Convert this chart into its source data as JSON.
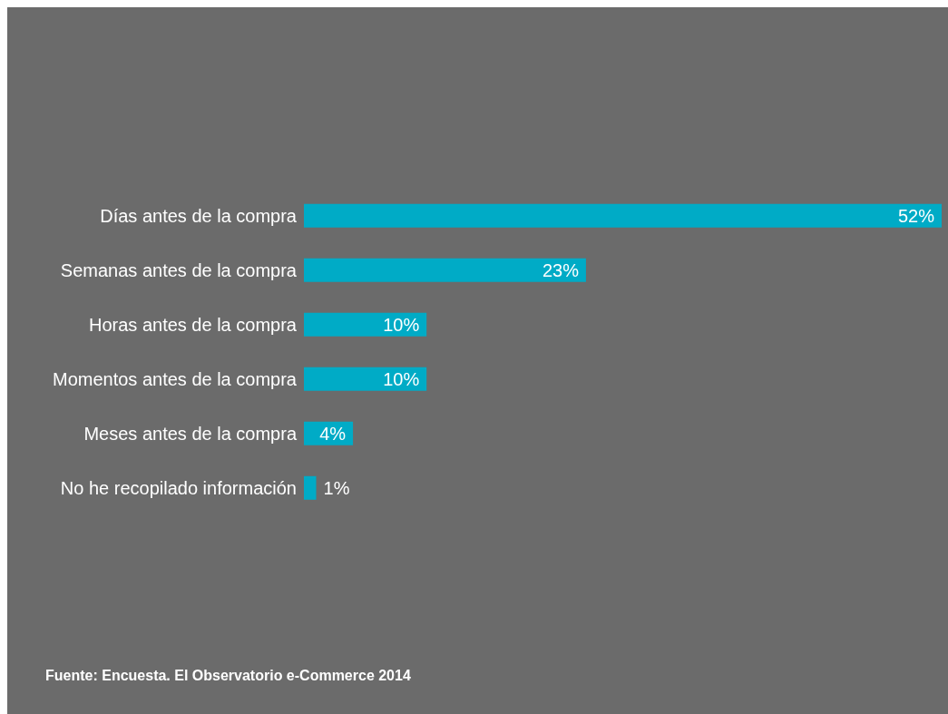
{
  "chart_data": {
    "type": "bar",
    "orientation": "horizontal",
    "categories": [
      "Días antes de la compra",
      "Semanas antes de la compra",
      "Horas antes de la compra",
      "Momentos antes de la compra",
      "Meses antes de la compra",
      "No he recopilado información"
    ],
    "values": [
      52,
      23,
      10,
      10,
      4,
      1
    ],
    "color": "#00abc6",
    "value_labels": [
      "52%",
      "23%",
      "10%",
      "10%",
      "4%",
      "1%"
    ],
    "annotations": [
      "Fuente: Encuesta. El Observatorio e-Commerce 2014"
    ]
  }
}
